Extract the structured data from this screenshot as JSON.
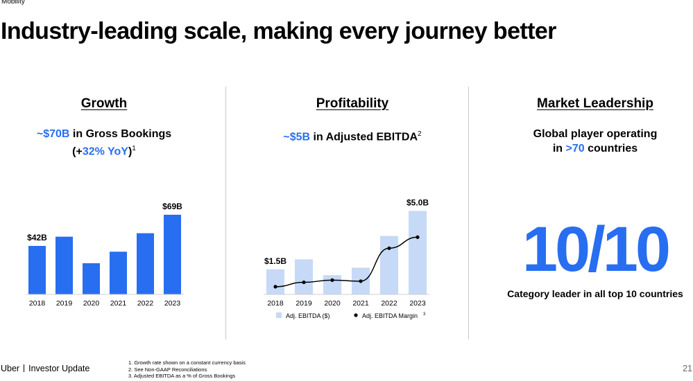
{
  "header": {
    "section": "Mobility",
    "title": "Industry-leading scale, making every journey better"
  },
  "growth": {
    "heading": "Growth",
    "line1_highlight": "~$70B",
    "line1_text": " in Gross Bookings",
    "line2_open": "(+",
    "line2_highlight": "32% YoY",
    "line2_close": ")",
    "line2_sup": "1"
  },
  "profitability": {
    "heading": "Profitability",
    "line1_highlight": "~$5B",
    "line1_text": " in Adjusted EBITDA",
    "line1_sup": "2"
  },
  "market": {
    "heading": "Market Leadership",
    "line1": "Global player operating",
    "line2_pre": "in ",
    "line2_highlight": ">70",
    "line2_post": " countries",
    "big_number": "10/10",
    "caption": "Category leader in all top 10 countries"
  },
  "footer": {
    "brand": "Uber",
    "doc": "Investor Update",
    "notes": [
      "1. Growth rate shown on a constant currency basis",
      "2. See Non-GAAP Reconciliations",
      "3. Adjusted EBITDA as a % of Gross Bookings"
    ],
    "page": "21"
  },
  "chart_data": [
    {
      "type": "bar",
      "name": "gross-bookings",
      "categories": [
        "2018",
        "2019",
        "2020",
        "2021",
        "2022",
        "2023"
      ],
      "values": [
        42,
        50,
        27,
        37,
        53,
        69
      ],
      "labels": [
        "$42B",
        "",
        "",
        "",
        "",
        "$69B"
      ],
      "ylim": [
        0,
        75
      ],
      "color": "#276ef1"
    },
    {
      "type": "bar",
      "name": "adjusted-ebitda",
      "categories": [
        "2018",
        "2019",
        "2020",
        "2021",
        "2022",
        "2023"
      ],
      "values": [
        1.5,
        2.1,
        1.15,
        1.6,
        3.5,
        5.0
      ],
      "labels": [
        "$1.5B",
        "",
        "",
        "",
        "",
        "$5.0B"
      ],
      "ylim": [
        0,
        5.6
      ],
      "color": "#c6d9f7",
      "line_series": {
        "name": "Adj. EBITDA Margin",
        "values": [
          0.7,
          1.1,
          1.3,
          1.2,
          4.2,
          5.2
        ],
        "ylim": [
          0,
          8.5
        ],
        "color": "#000000"
      },
      "legend": [
        {
          "label": "Adj. EBITDA ($)",
          "kind": "bar"
        },
        {
          "label": "Adj. EBITDA Margin",
          "kind": "line",
          "sup": "3"
        }
      ]
    }
  ]
}
